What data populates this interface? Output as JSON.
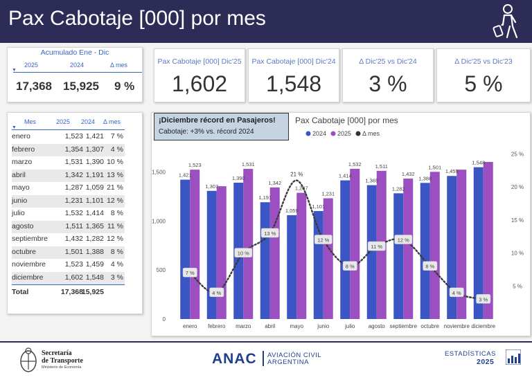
{
  "header": {
    "title": "Pax Cabotaje [000] por mes"
  },
  "accumulated": {
    "title": "Acumulado Ene - Dic",
    "headers": [
      "2025",
      "2024",
      "Δ mes"
    ],
    "values": [
      "17,368",
      "15,925",
      "9 %"
    ]
  },
  "kpis": [
    {
      "title": "Pax Cabotaje [000] Dic'25",
      "value": "1,602"
    },
    {
      "title": "Pax Cabotaje [000] Dic'24",
      "value": "1,548"
    },
    {
      "title": "Δ Dic'25 vs Dic'24",
      "value": "3 %"
    },
    {
      "title": "Δ Dic'25 vs Dic'23",
      "value": "5 %"
    }
  ],
  "table": {
    "headers": [
      "Mes",
      "2025",
      "2024",
      "Δ mes"
    ],
    "rows": [
      [
        "enero",
        "1,523",
        "1,421",
        "7 %"
      ],
      [
        "febrero",
        "1,354",
        "1,307",
        "4 %"
      ],
      [
        "marzo",
        "1,531",
        "1,390",
        "10 %"
      ],
      [
        "abril",
        "1,342",
        "1,191",
        "13 %"
      ],
      [
        "mayo",
        "1,287",
        "1,059",
        "21 %"
      ],
      [
        "junio",
        "1,231",
        "1,101",
        "12 %"
      ],
      [
        "julio",
        "1,532",
        "1,414",
        "8 %"
      ],
      [
        "agosto",
        "1,511",
        "1,365",
        "11 %"
      ],
      [
        "septiembre",
        "1,432",
        "1,282",
        "12 %"
      ],
      [
        "octubre",
        "1,501",
        "1,388",
        "8 %"
      ],
      [
        "noviembre",
        "1,523",
        "1,459",
        "4 %"
      ],
      [
        "diciembre",
        "1,602",
        "1,548",
        "3 %"
      ]
    ],
    "total": [
      "Total",
      "17,368",
      "15,925"
    ]
  },
  "callout": {
    "line1": "¡Diciembre récord en Pasajeros!",
    "line2": "Cabotaje: +3% vs. récord 2024"
  },
  "chart_data": {
    "type": "bar",
    "title": "Pax Cabotaje [000] por mes",
    "categories": [
      "enero",
      "febrero",
      "marzo",
      "abril",
      "mayo",
      "junio",
      "julio",
      "agosto",
      "septiembre",
      "octubre",
      "noviembre",
      "diciembre"
    ],
    "series": [
      {
        "name": "2024",
        "color": "#3b55c4",
        "values": [
          1421,
          1307,
          1390,
          1191,
          1059,
          1101,
          1414,
          1365,
          1282,
          1388,
          1459,
          1548
        ]
      },
      {
        "name": "2025",
        "color": "#9b4fc0",
        "values": [
          1523,
          1354,
          1531,
          1342,
          1287,
          1231,
          1532,
          1511,
          1432,
          1501,
          1523,
          1602
        ]
      }
    ],
    "delta": {
      "name": "Δ mes",
      "color": "#333333",
      "values": [
        7,
        4,
        10,
        13,
        21,
        12,
        8,
        11,
        12,
        8,
        4,
        3
      ],
      "labels": [
        "7 %",
        "4 %",
        "10 %",
        "13 %",
        "21 %",
        "12 %",
        "8 %",
        "11 %",
        "12 %",
        "8 %",
        "4 %",
        "3 %"
      ]
    },
    "bar_labels_2024": [
      "1,421",
      "1,307",
      "1,390",
      "1,191",
      "1,059",
      "1,101",
      "1,414",
      "1,365",
      "1,282",
      "1,388",
      "1,459",
      "1,548"
    ],
    "bar_labels_2025": [
      "1,523",
      "",
      "1,531",
      "1,342",
      "1,287",
      "1,231",
      "1,532",
      "1,511",
      "1,432",
      "1,501",
      "",
      ""
    ],
    "ylim": [
      0,
      1750
    ],
    "y_ticks": [
      0,
      500,
      1000,
      1500
    ],
    "y_tick_labels": [
      "0",
      "500",
      "1,000",
      "1,500"
    ],
    "y2_ticks": [
      5,
      10,
      15,
      20,
      25
    ],
    "y2_tick_labels": [
      "5 %",
      "10 %",
      "15 %",
      "20 %",
      "25 %"
    ],
    "legend_position": "top"
  },
  "footer": {
    "ministry_line1": "Secretaría",
    "ministry_line2": "de Transporte",
    "ministry_line3": "Ministerio de Economía",
    "anac": "ANAC",
    "anac_sub1": "AVIACIÓN CIVIL",
    "anac_sub2": "ARGENTINA",
    "stats1": "ESTADÍSTICAS",
    "stats2": "2025"
  },
  "colors": {
    "header": "#2c2c57",
    "accent": "#3465c8",
    "bar2024": "#3b55c4",
    "bar2025": "#9b4fc0"
  }
}
